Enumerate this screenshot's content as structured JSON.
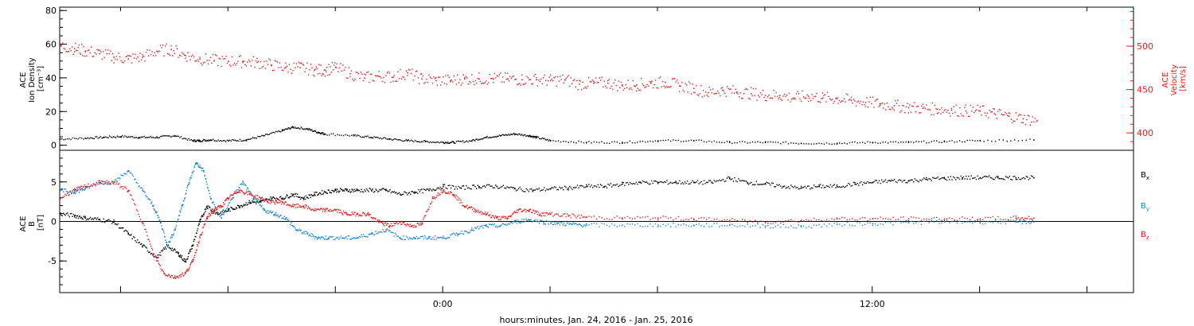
{
  "colors": {
    "black": "#000000",
    "red": "#e8191c",
    "blue": "#1a86d6"
  },
  "chart_data": [
    {
      "type": "scatter",
      "panel": "top",
      "y_label_left": [
        "ACE",
        "Ion Density",
        "[cm⁻³]"
      ],
      "y_label_right": [
        "ACE",
        "Velocity",
        "[km/s]"
      ],
      "x_time_hours": [
        -10.7,
        19.3
      ],
      "ylim_left": [
        -3,
        82
      ],
      "ylim_right": [
        380,
        545
      ],
      "yticks_left": [
        0,
        20,
        40,
        60,
        80
      ],
      "yticks_right": [
        400,
        450,
        500
      ],
      "series": [
        {
          "axis": "left",
          "color": "black",
          "x": [
            -10.7,
            -10,
            -9.5,
            -9,
            -8.5,
            -8,
            -7.5,
            -7,
            -6.8,
            -6.5,
            -6,
            -5.5,
            -5,
            -4.5,
            -4.2,
            -3.8,
            -3.5,
            -3.3,
            -2.5,
            -2,
            -1.5,
            -1,
            -0.5,
            0,
            0.3,
            0.8,
            1.2,
            1.6,
            2,
            2.4,
            2.6,
            3,
            4,
            5,
            6,
            7,
            8,
            9,
            10,
            11,
            12,
            13,
            14,
            15,
            16.5
          ],
          "y": [
            4,
            4.5,
            5,
            5.5,
            5,
            5,
            6,
            3,
            3,
            3.5,
            3,
            3.5,
            6,
            9,
            11,
            10,
            8,
            7,
            6,
            5,
            4,
            3,
            2.5,
            2,
            2,
            3,
            5,
            6,
            7,
            6,
            5,
            3,
            2,
            2,
            3,
            3,
            2,
            2,
            1.5,
            1.5,
            2,
            2,
            2.5,
            3,
            3.5
          ]
        },
        {
          "axis": "right",
          "color": "red",
          "x": [
            -10.7,
            -10.3,
            -10,
            -9.6,
            -9.2,
            -8.8,
            -8.4,
            -8,
            -7.6,
            -7.2,
            -6.8,
            -6.4,
            -6,
            -5.6,
            -5.2,
            -4.8,
            -4.4,
            -4,
            -3.6,
            -3.3,
            -3,
            -2.6,
            -2.2,
            -1.8,
            -1.4,
            -1,
            -0.6,
            -0.2,
            0.2,
            0.6,
            1,
            1.4,
            1.8,
            2.2,
            2.6,
            3,
            3.4,
            3.8,
            4.2,
            4.6,
            5,
            5.4,
            5.8,
            6.2,
            6.6,
            7,
            7.4,
            7.8,
            8.2,
            8.6,
            9,
            9.4,
            9.8,
            10.2,
            10.6,
            11,
            11.4,
            11.8,
            12.2,
            12.6,
            13,
            13.4,
            13.8,
            14.2,
            14.6,
            15,
            15.4,
            15.8,
            16.2,
            16.6
          ],
          "y": [
            501,
            498,
            495,
            492,
            488,
            486,
            488,
            495,
            497,
            490,
            486,
            484,
            483,
            483,
            482,
            479,
            476,
            476,
            473,
            473,
            476,
            469,
            464,
            466,
            465,
            470,
            463,
            461,
            461,
            463,
            463,
            463,
            463,
            462,
            462,
            461,
            462,
            457,
            458,
            458,
            455,
            456,
            458,
            459,
            455,
            452,
            447,
            450,
            448,
            446,
            444,
            444,
            441,
            443,
            441,
            440,
            438,
            436,
            434,
            432,
            430,
            429,
            428,
            427,
            426,
            426,
            423,
            420,
            417,
            415
          ]
        }
      ]
    },
    {
      "type": "scatter",
      "panel": "bottom",
      "y_label": [
        "ACE",
        "B",
        "[nT]"
      ],
      "ylim": [
        -9,
        9
      ],
      "yticks": [
        -5,
        0,
        5
      ],
      "zero_line": true,
      "series": [
        {
          "name": "Bx",
          "color": "black",
          "x": [
            -10.7,
            -10.3,
            -10,
            -9.6,
            -9.2,
            -8.8,
            -8.4,
            -8,
            -7.7,
            -7.4,
            -7.2,
            -7,
            -6.8,
            -6.6,
            -6.3,
            -6,
            -5.7,
            -5.4,
            -5.1,
            -4.8,
            -4.5,
            -4.2,
            -3.9,
            -3.6,
            -3.3,
            -3,
            -2.7,
            -2.4,
            -2,
            -1.6,
            -1.2,
            -0.8,
            -0.4,
            0,
            0.5,
            1,
            1.5,
            2,
            2.5,
            3,
            3.5,
            4,
            4.5,
            5,
            5.5,
            6,
            6.5,
            7,
            7.5,
            8,
            8.5,
            9,
            9.5,
            10,
            10.5,
            11,
            11.5,
            12,
            12.5,
            13,
            13.5,
            14,
            14.5,
            15,
            15.5,
            16,
            16.5
          ],
          "y": [
            1,
            0.8,
            0.5,
            0.3,
            0,
            -1.5,
            -3,
            -4.5,
            -3,
            -4,
            -5,
            -3,
            0,
            2,
            1,
            1.5,
            2,
            2.5,
            2.5,
            3,
            3,
            3.5,
            3,
            3.5,
            3.8,
            4,
            4,
            4,
            4,
            4,
            3.5,
            3.8,
            4,
            4.5,
            4.3,
            4.5,
            4.5,
            4.2,
            4,
            4.2,
            4.3,
            4.5,
            4.5,
            4.8,
            5,
            5,
            5,
            5,
            5,
            5.5,
            5,
            4.8,
            4.5,
            4.3,
            4.5,
            4.5,
            4.8,
            5,
            5.2,
            5.2,
            5.4,
            5.5,
            5.6,
            5.6,
            5.6,
            5.6,
            5.6
          ]
        },
        {
          "name": "By",
          "color": "blue",
          "x": [
            -10.7,
            -10.3,
            -10,
            -9.6,
            -9.2,
            -8.8,
            -8.4,
            -8.1,
            -7.9,
            -7.7,
            -7.5,
            -7.3,
            -7.1,
            -6.9,
            -6.7,
            -6.5,
            -6.2,
            -5.9,
            -5.6,
            -5.3,
            -5,
            -4.7,
            -4.4,
            -4.1,
            -3.8,
            -3.5,
            -3.2,
            -2.8,
            -2.4,
            -2,
            -1.6,
            -1.2,
            -0.8,
            -0.4,
            0,
            0.4,
            0.8,
            1.2,
            1.6,
            2,
            2.4,
            2.8,
            3.2,
            3.6,
            4,
            5,
            6,
            7,
            8,
            9,
            10,
            11,
            12,
            13,
            14,
            15,
            16,
            16.5
          ],
          "y": [
            4,
            3.8,
            4.2,
            5,
            5,
            6.5,
            4,
            2,
            0,
            -3,
            -1,
            2,
            5,
            7.5,
            6.5,
            3,
            0.5,
            3,
            5,
            3,
            1.5,
            1,
            0.5,
            -1,
            -1.5,
            -2,
            -2,
            -2,
            -2,
            -1.5,
            -1,
            -2,
            -2,
            -2,
            -2,
            -1.5,
            -1,
            -0.5,
            -0.5,
            0,
            0.3,
            0,
            -0.2,
            -0.3,
            -0.4,
            -0.4,
            -0.4,
            -0.4,
            -0.4,
            -0.5,
            -0.6,
            -0.3,
            -0.2,
            -0.1,
            0,
            0,
            0,
            0
          ]
        },
        {
          "name": "Bz",
          "color": "red",
          "x": [
            -10.7,
            -10.3,
            -10,
            -9.6,
            -9.2,
            -8.8,
            -8.4,
            -8.1,
            -7.8,
            -7.5,
            -7.2,
            -7,
            -6.8,
            -6.6,
            -6.4,
            -6.2,
            -6,
            -5.7,
            -5.4,
            -5.1,
            -4.8,
            -4.5,
            -4.2,
            -3.9,
            -3.6,
            -3.3,
            -3,
            -2.7,
            -2.4,
            -2.1,
            -1.8,
            -1.5,
            -1.2,
            -0.9,
            -0.6,
            -0.3,
            0,
            0.3,
            0.6,
            0.9,
            1.2,
            1.5,
            1.8,
            2.1,
            2.4,
            2.7,
            3,
            3.5,
            4,
            5,
            6,
            7,
            8,
            9,
            10,
            11,
            12,
            13,
            14,
            15,
            16,
            16.5
          ],
          "y": [
            3,
            4,
            4.5,
            5,
            5,
            4,
            0,
            -4,
            -6.5,
            -7,
            -6.5,
            -5,
            -2,
            0.5,
            1.5,
            2,
            3,
            4,
            3.5,
            3,
            2.5,
            2.5,
            2,
            2,
            1.5,
            1.5,
            1.5,
            1,
            1,
            1,
            0,
            -0.5,
            0,
            -0.5,
            -0.3,
            3,
            4,
            3.5,
            2,
            1.5,
            1,
            0.5,
            0.5,
            1.5,
            1.5,
            1,
            1,
            0.8,
            0.6,
            0.5,
            0.5,
            0.4,
            0.2,
            0,
            0.2,
            0.4,
            0.4,
            0.4,
            0.4,
            0.4,
            0.5,
            0.5
          ]
        }
      ],
      "legend": [
        {
          "text": "B",
          "sub": "x",
          "color": "black"
        },
        {
          "text": "B",
          "sub": "y",
          "color": "blue"
        },
        {
          "text": "B",
          "sub": "z",
          "color": "red"
        }
      ]
    }
  ],
  "x_axis": {
    "tick_labels": [
      "0:00",
      "12:00"
    ],
    "label": "hours:minutes, Jan. 24, 2016 - Jan. 25, 2016"
  }
}
